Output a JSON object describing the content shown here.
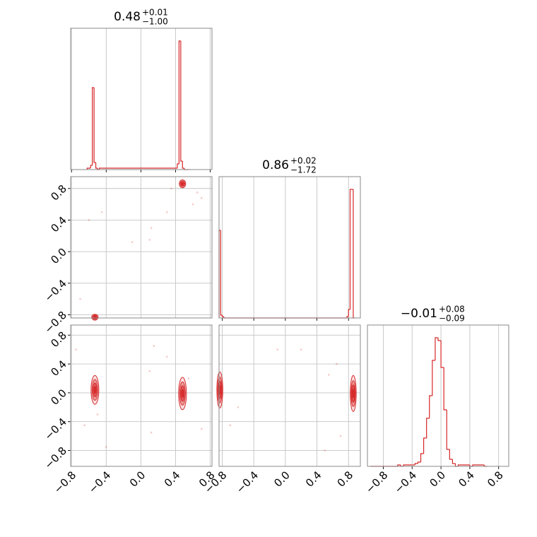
{
  "chart_data": {
    "type": "corner",
    "color": "#d62728",
    "grid": true,
    "params": [
      {
        "title": "0.48",
        "title_plus": "+0.01",
        "title_minus": "−1.00",
        "lim": [
          -0.81,
          0.82
        ],
        "ticks": [
          {
            "value": -0.8,
            "label": "−0.8"
          },
          {
            "value": -0.4,
            "label": "−0.4"
          },
          {
            "value": 0,
            "label": "0.0"
          },
          0.4,
          0.8
        ],
        "bins": [
          -0.62,
          -0.58,
          -0.56,
          -0.54,
          -0.52,
          -0.5,
          -0.48,
          0.42,
          0.44,
          0.46,
          0.48,
          0.5,
          0.52,
          0.56
        ],
        "counts": [
          1,
          3,
          58,
          5,
          1,
          0,
          1,
          4,
          91,
          6,
          1,
          0,
          0
        ],
        "hist_ylim": [
          0,
          100
        ]
      },
      {
        "title": "0.86",
        "title_plus": "+0.02",
        "title_minus": "−1.72",
        "lim": [
          -0.84,
          0.95
        ],
        "ticks": [
          {
            "value": -0.8,
            "label": "−0.8"
          },
          {
            "value": -0.4,
            "label": "−0.4"
          },
          {
            "value": 0,
            "label": "0.0"
          },
          0.4,
          0.8
        ],
        "bins": [
          -0.84,
          -0.82,
          -0.8,
          -0.78,
          0.78,
          0.8,
          0.82,
          0.84,
          0.86,
          0.88
        ],
        "counts": [
          62,
          2,
          1,
          0,
          1,
          6,
          91,
          91,
          0
        ],
        "hist_ylim": [
          0,
          100
        ]
      },
      {
        "title": "−0.01",
        "title_plus": "+0.08",
        "title_minus": "−0.09",
        "lim": [
          -1.02,
          0.94
        ],
        "ticks": [
          {
            "value": -0.8,
            "label": "−0.8"
          },
          {
            "value": -0.4,
            "label": "−0.4"
          },
          {
            "value": 0,
            "label": "0.0"
          },
          0.4,
          0.8
        ],
        "bins": [
          -0.98,
          -0.6,
          -0.56,
          -0.52,
          -0.4,
          -0.36,
          -0.32,
          -0.28,
          -0.24,
          -0.2,
          -0.16,
          -0.12,
          -0.08,
          -0.04,
          0,
          0.04,
          0.08,
          0.12,
          0.16,
          0.2,
          0.24,
          0.4,
          0.44,
          0.6,
          0.64
        ],
        "counts": [
          0,
          1,
          0,
          1,
          1,
          2,
          3,
          9,
          20,
          34,
          50,
          75,
          91,
          89,
          70,
          40,
          12,
          5,
          2,
          0,
          1,
          0,
          1,
          0
        ],
        "hist_ylim": [
          0,
          100
        ]
      }
    ],
    "pairs": [
      {
        "x": 0,
        "y": 1,
        "blobs": [
          {
            "x": 0.48,
            "y": 0.86,
            "sx": 0.015,
            "sy": 0.02
          },
          {
            "x": -0.53,
            "y": -0.83,
            "sx": 0.015,
            "sy": 0.015
          }
        ],
        "points": {
          "x": [
            0.35,
            0.12,
            -0.1,
            0.6,
            0.3,
            -0.6,
            -0.7,
            0.7,
            0.1,
            -0.45,
            0.65
          ],
          "y": [
            0.8,
            0.3,
            0.12,
            0.6,
            0.5,
            0.4,
            -0.6,
            0.68,
            0.15,
            0.5,
            0.75
          ]
        }
      },
      {
        "x": 0,
        "y": 2,
        "blobs": [
          {
            "x": -0.53,
            "y": 0.04,
            "sx": 0.018,
            "sy": 0.08
          },
          {
            "x": 0.48,
            "y": -0.01,
            "sx": 0.018,
            "sy": 0.09
          }
        ],
        "points": {
          "x": [
            -0.75,
            0.1,
            0.12,
            -0.4,
            0.7,
            0.3,
            -0.65,
            0.55,
            0.15,
            -0.5
          ],
          "y": [
            0.6,
            0.3,
            -0.55,
            -0.75,
            -0.5,
            0.5,
            -0.45,
            0.2,
            0.65,
            -0.3
          ]
        }
      },
      {
        "x": 1,
        "y": 2,
        "blobs": [
          {
            "x": -0.83,
            "y": 0.04,
            "sx": 0.015,
            "sy": 0.1
          },
          {
            "x": 0.86,
            "y": -0.01,
            "sx": 0.015,
            "sy": 0.1
          }
        ],
        "points": {
          "x": [
            -0.6,
            -0.1,
            0.2,
            0.5,
            0.7,
            0.55,
            -0.7,
            0.65
          ],
          "y": [
            -0.2,
            0.6,
            0.6,
            -0.8,
            -0.6,
            0.25,
            -0.45,
            0.4
          ]
        }
      }
    ]
  }
}
